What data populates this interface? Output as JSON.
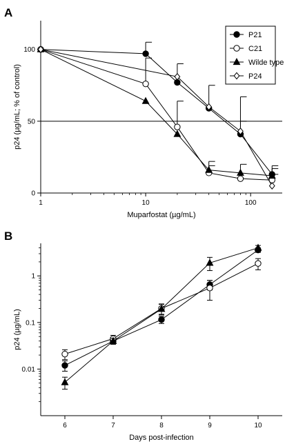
{
  "chart_data": [
    {
      "panel": "A",
      "type": "line",
      "x_scale": "log",
      "xlabel": "Muparfostat (µg/mL)",
      "ylabel": "p24 (µg/mL; % of control)",
      "xlim": [
        1,
        200
      ],
      "ylim": [
        0,
        120
      ],
      "x_ticks": [
        1,
        10,
        100
      ],
      "y_ticks": [
        0,
        50,
        100
      ],
      "reference_line": 50,
      "legend": "top-right",
      "grid": false,
      "series": [
        {
          "name": "P21",
          "marker": "filled-circle",
          "x": [
            1,
            10,
            20,
            40,
            80,
            160
          ],
          "y": [
            100,
            97,
            77,
            59,
            41,
            13
          ],
          "err": [
            0,
            8,
            0,
            16,
            9,
            4
          ]
        },
        {
          "name": "C21",
          "marker": "open-circle",
          "x": [
            1,
            10,
            20,
            40,
            80,
            160
          ],
          "y": [
            100,
            76,
            46,
            14,
            10,
            9
          ],
          "err": [
            0,
            18,
            18,
            5,
            0,
            4
          ]
        },
        {
          "name": "Wilde type",
          "marker": "filled-triangle",
          "x": [
            1,
            10,
            20,
            40,
            80,
            160
          ],
          "y": [
            100,
            64,
            41,
            16,
            14,
            12
          ],
          "err": [
            0,
            0,
            0,
            6,
            6,
            7
          ]
        },
        {
          "name": "P24",
          "marker": "open-diamond",
          "x": [
            1,
            20,
            40,
            80,
            160
          ],
          "y": [
            100,
            81,
            60,
            43,
            5
          ],
          "err": [
            0,
            9,
            0,
            24,
            0
          ]
        }
      ]
    },
    {
      "panel": "B",
      "type": "line",
      "y_scale": "log",
      "xlabel": "Days post-infection",
      "ylabel": "p24 (µg/mL)",
      "xlim": [
        5.5,
        10.5
      ],
      "ylim": [
        0.001,
        5
      ],
      "x_ticks": [
        6,
        7,
        8,
        9,
        10
      ],
      "y_ticks": [
        0.01,
        0.1,
        1
      ],
      "y_tick_labels": [
        "0.01",
        "0.1",
        "1"
      ],
      "grid": false,
      "series": [
        {
          "marker": "filled-circle",
          "x": [
            6,
            7,
            8,
            9,
            10
          ],
          "y": [
            0.012,
            0.04,
            0.115,
            0.65,
            3.6
          ],
          "err": [
            0.003,
            0.006,
            0.02,
            0.15,
            0.4
          ]
        },
        {
          "marker": "open-circle",
          "x": [
            6,
            7,
            8,
            9,
            10
          ],
          "y": [
            0.021,
            0.045,
            0.2,
            0.55,
            1.85
          ],
          "err": [
            0.005,
            0.008,
            0.05,
            0.25,
            0.5
          ]
        },
        {
          "marker": "filled-triangle",
          "x": [
            6,
            7,
            8,
            9,
            10
          ],
          "y": [
            0.0052,
            0.04,
            0.195,
            1.9,
            4.0
          ],
          "err": [
            0.0015,
            0.006,
            0.05,
            0.6,
            0.5
          ]
        }
      ]
    }
  ]
}
